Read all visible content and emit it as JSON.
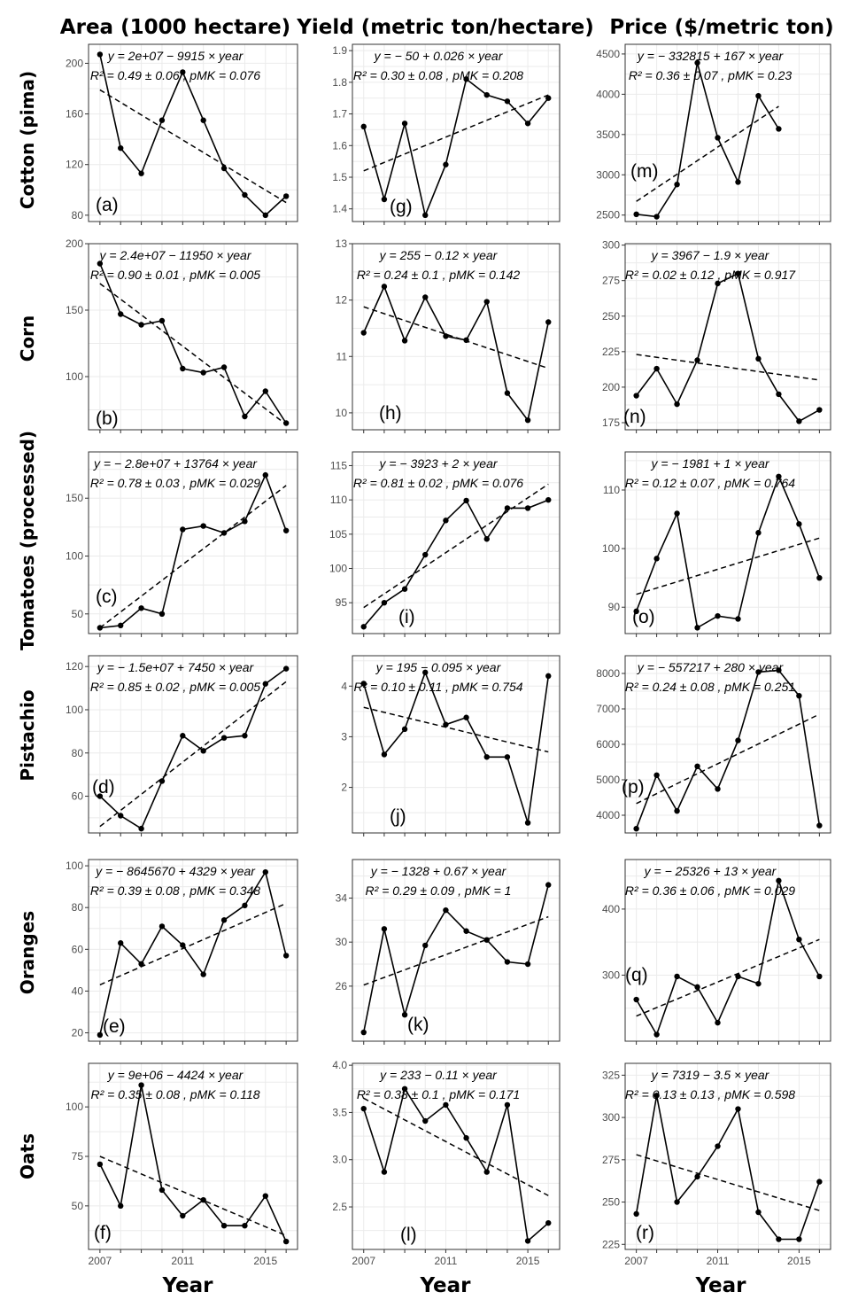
{
  "column_titles": [
    "Area (1000 hectare)",
    "Yield (metric ton/hectare)",
    "Price ($/metric ton)"
  ],
  "row_titles": [
    "Cotton (pima)",
    "Corn",
    "Tomatoes (processed)",
    "Pistachio",
    "Oranges",
    "Oats"
  ],
  "x_axis_label": "Year",
  "colors": {
    "line": "#000000",
    "trend": "#000000",
    "grid": "#ebebeb",
    "border": "#333333"
  },
  "chart_data": [
    {
      "id": "a",
      "type": "line",
      "column": 0,
      "row": 0,
      "x": [
        2007,
        2008,
        2009,
        2010,
        2011,
        2012,
        2013,
        2014,
        2015,
        2016
      ],
      "values": [
        207,
        133,
        113,
        155,
        193,
        155,
        117,
        96,
        80,
        95
      ],
      "ylim": [
        75,
        215
      ],
      "yticks": [
        80,
        120,
        160,
        200
      ],
      "ytick_labels": [
        "80",
        "120",
        "160",
        "200"
      ],
      "trend": [
        179,
        90
      ],
      "eq1": "y = 2e+07 − 9915 × year",
      "eq2": "R² = 0.49 ± 0.06 , pMK = 0.076",
      "label": "(a)"
    },
    {
      "id": "b",
      "type": "line",
      "column": 0,
      "row": 1,
      "x": [
        2007,
        2008,
        2009,
        2010,
        2011,
        2012,
        2013,
        2014,
        2015,
        2016
      ],
      "values": [
        185,
        147,
        139,
        142,
        106,
        103,
        107,
        70,
        89,
        65
      ],
      "ylim": [
        60,
        200
      ],
      "yticks": [
        100,
        150,
        200
      ],
      "ytick_labels": [
        "100",
        "150",
        "200"
      ],
      "trend": [
        170,
        64
      ],
      "eq1": "y = 2.4e+07 − 11950 × year",
      "eq2": "R² = 0.90 ± 0.01 , pMK = 0.005",
      "label": "(b)"
    },
    {
      "id": "c",
      "type": "line",
      "column": 0,
      "row": 2,
      "x": [
        2007,
        2008,
        2009,
        2010,
        2011,
        2012,
        2013,
        2014,
        2015,
        2016
      ],
      "values": [
        38,
        40,
        55,
        50,
        123,
        126,
        120,
        130,
        170,
        122
      ],
      "ylim": [
        33,
        190
      ],
      "yticks": [
        50,
        100,
        150
      ],
      "ytick_labels": [
        "50",
        "100",
        "150"
      ],
      "trend": [
        38,
        161
      ],
      "eq1": "y = − 2.8e+07 + 13764 × year",
      "eq2": "R² = 0.78 ± 0.03 , pMK = 0.029",
      "label": "(c)"
    },
    {
      "id": "d",
      "type": "line",
      "column": 0,
      "row": 3,
      "x": [
        2007,
        2008,
        2009,
        2010,
        2011,
        2012,
        2013,
        2014,
        2015,
        2016
      ],
      "values": [
        60,
        51,
        45,
        67,
        88,
        81,
        87,
        88,
        112,
        119
      ],
      "ylim": [
        43,
        125
      ],
      "yticks": [
        60,
        80,
        100,
        120
      ],
      "ytick_labels": [
        "60",
        "80",
        "100",
        "120"
      ],
      "trend": [
        46,
        113
      ],
      "eq1": "y = − 1.5e+07 + 7450 × year",
      "eq2": "R² = 0.85 ± 0.02 , pMK = 0.005",
      "label": "(d)"
    },
    {
      "id": "e",
      "type": "line",
      "column": 0,
      "row": 4,
      "x": [
        2007,
        2008,
        2009,
        2010,
        2011,
        2012,
        2013,
        2014,
        2015,
        2016
      ],
      "values": [
        19,
        63,
        53,
        71,
        62,
        48,
        74,
        81,
        97,
        57
      ],
      "ylim": [
        16,
        103
      ],
      "yticks": [
        20,
        40,
        60,
        80,
        100
      ],
      "ytick_labels": [
        "20",
        "40",
        "60",
        "80",
        "100"
      ],
      "trend": [
        43,
        82
      ],
      "eq1": "y = − 8645670 + 4329 × year",
      "eq2": "R² = 0.39 ± 0.08 , pMK = 0.348",
      "label": "(e)"
    },
    {
      "id": "f",
      "type": "line",
      "column": 0,
      "row": 5,
      "x": [
        2007,
        2008,
        2009,
        2010,
        2011,
        2012,
        2013,
        2014,
        2015,
        2016
      ],
      "values": [
        71,
        50,
        111,
        58,
        45,
        53,
        40,
        40,
        55,
        32
      ],
      "ylim": [
        28,
        122
      ],
      "yticks": [
        50,
        75,
        100
      ],
      "ytick_labels": [
        "50",
        "75",
        "100"
      ],
      "trend": [
        75,
        35
      ],
      "eq1": "y = 9e+06 − 4424 × year",
      "eq2": "R² = 0.35 ± 0.08 , pMK = 0.118",
      "label": "(f)"
    },
    {
      "id": "g",
      "type": "line",
      "column": 1,
      "row": 0,
      "x": [
        2007,
        2008,
        2009,
        2010,
        2011,
        2012,
        2013,
        2014,
        2015,
        2016
      ],
      "values": [
        1.66,
        1.43,
        1.67,
        1.38,
        1.54,
        1.81,
        1.76,
        1.74,
        1.67,
        1.75
      ],
      "ylim": [
        1.36,
        1.92
      ],
      "yticks": [
        1.4,
        1.5,
        1.6,
        1.7,
        1.8,
        1.9
      ],
      "ytick_labels": [
        "1.4",
        "1.5",
        "1.6",
        "1.7",
        "1.8",
        "1.9"
      ],
      "trend": [
        1.52,
        1.76
      ],
      "eq1": "y = − 50 + 0.026 × year",
      "eq2": "R² = 0.30 ± 0.08 , pMK = 0.208",
      "label": "(g)"
    },
    {
      "id": "h",
      "type": "line",
      "column": 1,
      "row": 1,
      "x": [
        2007,
        2008,
        2009,
        2010,
        2011,
        2012,
        2013,
        2014,
        2015,
        2016
      ],
      "values": [
        11.42,
        12.24,
        11.28,
        12.05,
        11.36,
        11.29,
        11.97,
        10.35,
        9.87,
        11.61
      ],
      "ylim": [
        9.7,
        13.0
      ],
      "yticks": [
        10,
        11,
        12,
        13
      ],
      "ytick_labels": [
        "10",
        "11",
        "12",
        "13"
      ],
      "trend": [
        11.88,
        10.79
      ],
      "eq1": "y = 255 − 0.12 × year",
      "eq2": "R² = 0.24 ± 0.1 , pMK = 0.142",
      "label": "(h)"
    },
    {
      "id": "i",
      "type": "line",
      "column": 1,
      "row": 2,
      "x": [
        2007,
        2008,
        2009,
        2010,
        2011,
        2012,
        2013,
        2014,
        2015,
        2016
      ],
      "values": [
        91.5,
        95,
        97,
        102,
        107,
        109.9,
        104.3,
        108.8,
        108.8,
        110
      ],
      "ylim": [
        90.5,
        117
      ],
      "yticks": [
        95,
        100,
        105,
        110,
        115
      ],
      "ytick_labels": [
        "95",
        "100",
        "105",
        "110",
        "115"
      ],
      "trend": [
        94.3,
        112.3
      ],
      "eq1": "y = − 3923 + 2 × year",
      "eq2": "R² = 0.81 ± 0.02 , pMK = 0.076",
      "label": "(i)"
    },
    {
      "id": "j",
      "type": "line",
      "column": 1,
      "row": 3,
      "x": [
        2007,
        2008,
        2009,
        2010,
        2011,
        2012,
        2013,
        2014,
        2015,
        2016
      ],
      "values": [
        4.05,
        2.65,
        3.15,
        4.27,
        3.24,
        3.38,
        2.6,
        2.6,
        1.3,
        4.2
      ],
      "ylim": [
        1.1,
        4.6
      ],
      "yticks": [
        2,
        3,
        4
      ],
      "ytick_labels": [
        "2",
        "3",
        "4"
      ],
      "trend": [
        3.58,
        2.7
      ],
      "eq1": "y = 195 − 0.095 × year",
      "eq2": "R² = 0.10 ± 0.11 , pMK = 0.754",
      "label": "(j)"
    },
    {
      "id": "k",
      "type": "line",
      "column": 1,
      "row": 4,
      "x": [
        2007,
        2008,
        2009,
        2010,
        2011,
        2012,
        2013,
        2014,
        2015,
        2016
      ],
      "values": [
        21.8,
        31.2,
        23.4,
        29.7,
        32.9,
        31,
        30.2,
        28.2,
        28,
        35.2
      ],
      "ylim": [
        21,
        37.5
      ],
      "yticks": [
        26,
        30,
        34
      ],
      "ytick_labels": [
        "26",
        "30",
        "34"
      ],
      "trend": [
        26.1,
        32.3
      ],
      "eq1": "y = − 1328 + 0.67 × year",
      "eq2": "R² = 0.29 ± 0.09 , pMK = 1",
      "label": "(k)"
    },
    {
      "id": "l",
      "type": "line",
      "column": 1,
      "row": 5,
      "x": [
        2007,
        2008,
        2009,
        2010,
        2011,
        2012,
        2013,
        2014,
        2015,
        2016
      ],
      "values": [
        3.54,
        2.87,
        3.75,
        3.41,
        3.58,
        3.23,
        2.87,
        3.58,
        2.14,
        2.33
      ],
      "ylim": [
        2.05,
        4.02
      ],
      "yticks": [
        2.5,
        3.0,
        3.5,
        4.0
      ],
      "ytick_labels": [
        "2.5",
        "3.0",
        "3.5",
        "4.0"
      ],
      "trend": [
        3.65,
        2.62
      ],
      "eq1": "y = 233 − 0.11 × year",
      "eq2": "R² = 0.38 ± 0.1 , pMK = 0.171",
      "label": "(l)"
    },
    {
      "id": "m",
      "type": "line",
      "column": 2,
      "row": 0,
      "x": [
        2007,
        2008,
        2009,
        2010,
        2011,
        2012,
        2013,
        2014
      ],
      "values": [
        2510,
        2480,
        2880,
        4390,
        3460,
        2910,
        3980,
        3570
      ],
      "ylim": [
        2420,
        4620
      ],
      "yticks": [
        2500,
        3000,
        3500,
        4000,
        4500
      ],
      "ytick_labels": [
        "2500",
        "3000",
        "3500",
        "4000",
        "4500"
      ],
      "trend_x": [
        2007,
        2014
      ],
      "trend": [
        2670,
        3850
      ],
      "eq1": "y = − 332815 + 167 × year",
      "eq2": "R² = 0.36 ± 0.07 , pMK = 0.23",
      "label": "(m)"
    },
    {
      "id": "n",
      "type": "line",
      "column": 2,
      "row": 1,
      "x": [
        2007,
        2008,
        2009,
        2010,
        2011,
        2012,
        2013,
        2014,
        2015,
        2016
      ],
      "values": [
        194,
        213,
        188,
        219,
        273,
        280,
        220,
        195,
        176,
        184
      ],
      "ylim": [
        170,
        301
      ],
      "yticks": [
        175,
        200,
        225,
        250,
        275,
        300
      ],
      "ytick_labels": [
        "175",
        "200",
        "225",
        "250",
        "275",
        "300"
      ],
      "trend": [
        223,
        205
      ],
      "eq1": "y = 3967 − 1.9 × year",
      "eq2": "R² = 0.02 ± 0.12 , pMK = 0.917",
      "label": "(n)"
    },
    {
      "id": "o",
      "type": "line",
      "column": 2,
      "row": 2,
      "x": [
        2007,
        2008,
        2009,
        2010,
        2011,
        2012,
        2013,
        2014,
        2015,
        2016
      ],
      "values": [
        89.3,
        98.3,
        106,
        86.5,
        88.5,
        88,
        102.7,
        112.3,
        104.2,
        95
      ],
      "ylim": [
        85.5,
        116.5
      ],
      "yticks": [
        90,
        100,
        110
      ],
      "ytick_labels": [
        "90",
        "100",
        "110"
      ],
      "trend": [
        92.2,
        101.8
      ],
      "eq1": "y = − 1981 + 1 × year",
      "eq2": "R² = 0.12 ± 0.07 , pMK = 0.764",
      "label": "(o)"
    },
    {
      "id": "p",
      "type": "line",
      "column": 2,
      "row": 3,
      "x": [
        2007,
        2008,
        2009,
        2010,
        2011,
        2012,
        2013,
        2014,
        2015,
        2016
      ],
      "values": [
        3620,
        5130,
        4120,
        5380,
        4740,
        6110,
        8040,
        8090,
        7370,
        3710
      ],
      "ylim": [
        3500,
        8500
      ],
      "yticks": [
        4000,
        5000,
        6000,
        7000,
        8000
      ],
      "ytick_labels": [
        "4000",
        "5000",
        "6000",
        "7000",
        "8000"
      ],
      "trend": [
        4330,
        6850
      ],
      "eq1": "y = − 557217 + 280 × year",
      "eq2": "R² = 0.24 ± 0.08 , pMK = 0.251",
      "label": "(p)"
    },
    {
      "id": "q",
      "type": "line",
      "column": 2,
      "row": 4,
      "x": [
        2007,
        2008,
        2009,
        2010,
        2011,
        2012,
        2013,
        2014,
        2015,
        2016
      ],
      "values": [
        263,
        210,
        298,
        282,
        228,
        298,
        287,
        443,
        354,
        298
      ],
      "ylim": [
        200,
        475
      ],
      "yticks": [
        300,
        400
      ],
      "ytick_labels": [
        "300",
        "400"
      ],
      "trend": [
        238,
        354
      ],
      "eq1": "y = − 25326 + 13 × year",
      "eq2": "R² = 0.36 ± 0.06 , pMK = 0.029",
      "label": "(q)"
    },
    {
      "id": "r",
      "type": "line",
      "column": 2,
      "row": 5,
      "x": [
        2007,
        2008,
        2009,
        2010,
        2011,
        2012,
        2013,
        2014,
        2015,
        2016
      ],
      "values": [
        243,
        313,
        250,
        265,
        283,
        305,
        244,
        228,
        228,
        262
      ],
      "ylim": [
        222,
        332
      ],
      "yticks": [
        225,
        250,
        275,
        300,
        325
      ],
      "ytick_labels": [
        "225",
        "250",
        "275",
        "300",
        "325"
      ],
      "trend": [
        278,
        245
      ],
      "eq1": "y = 7319 − 3.5 × year",
      "eq2": "R² = 0.13 ± 0.13 , pMK = 0.598",
      "label": "(r)"
    }
  ],
  "x_ticks": [
    2007,
    2011,
    2015
  ],
  "x_tick_labels": [
    "2007",
    "2011",
    "2015"
  ]
}
